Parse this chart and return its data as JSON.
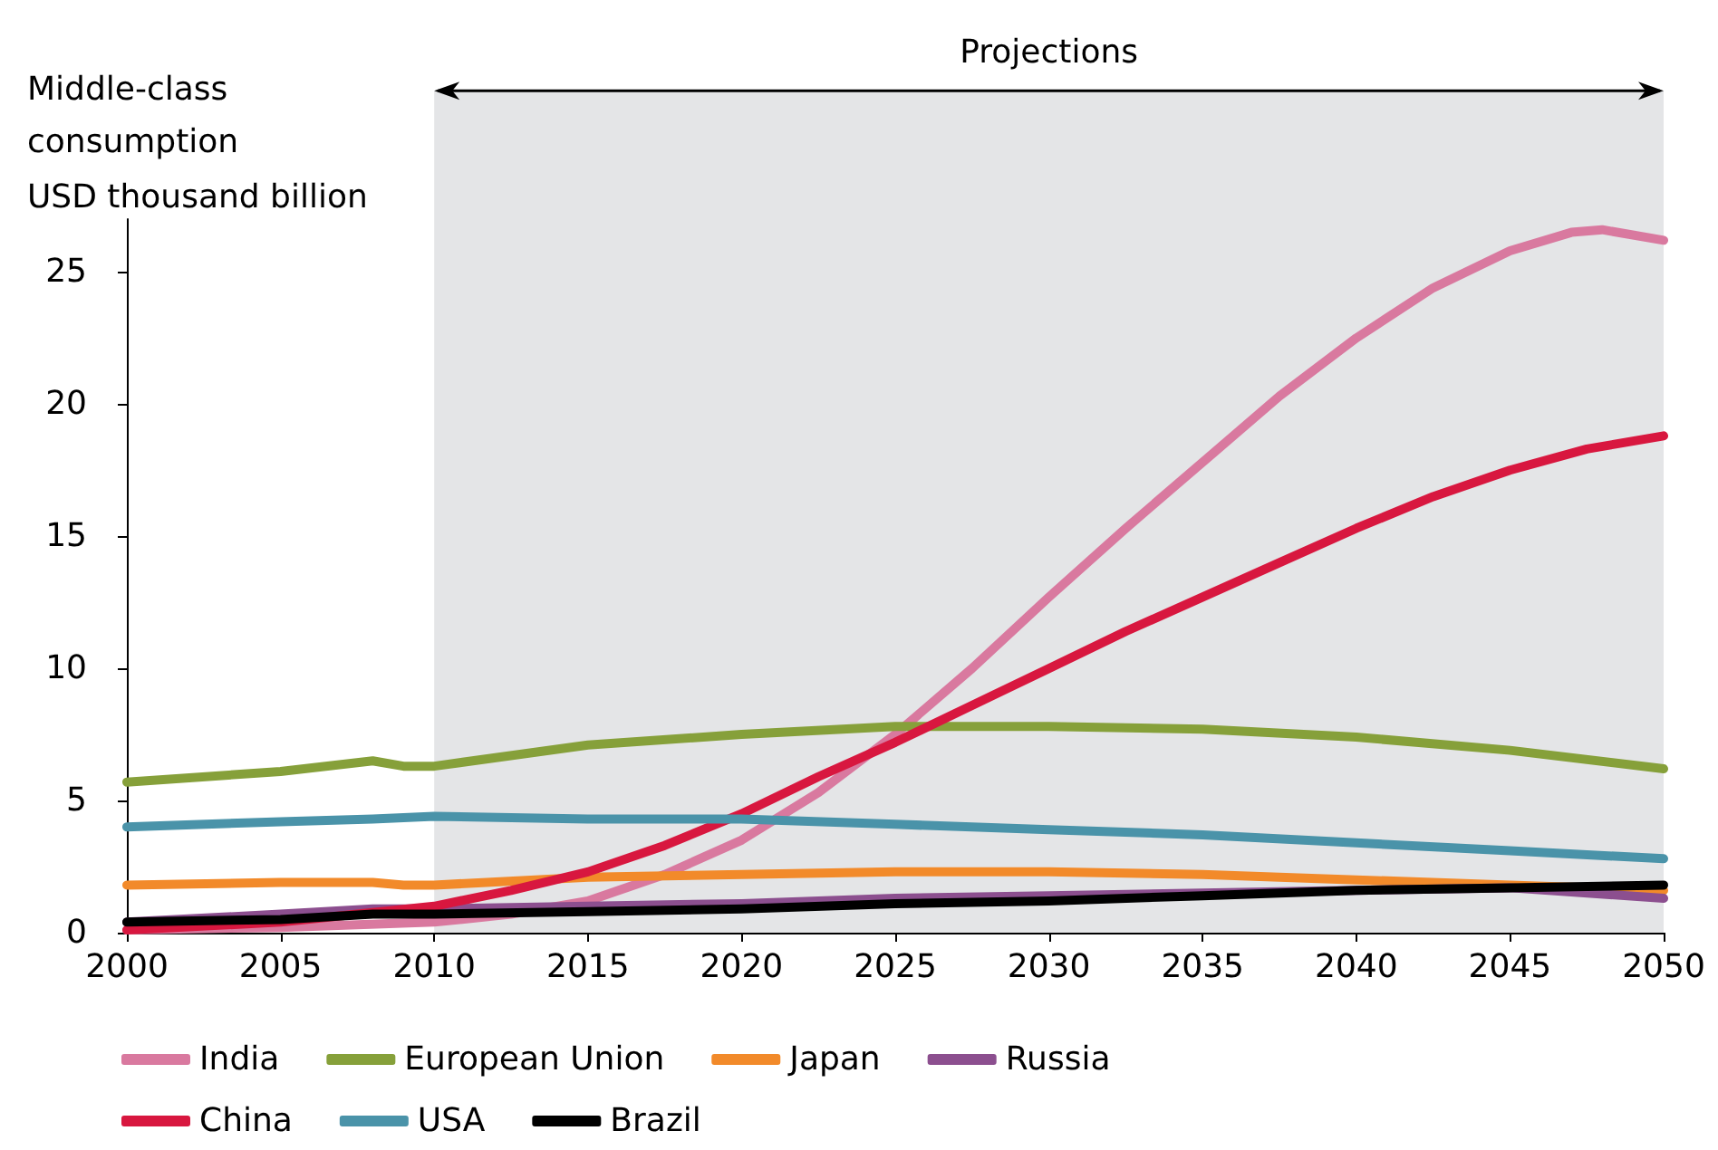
{
  "chart_data": {
    "type": "line",
    "title": "Middle-class consumption",
    "ylabel": "USD thousand billion",
    "xlim": [
      2000,
      2050
    ],
    "xticks": [
      2000,
      2005,
      2010,
      2015,
      2020,
      2025,
      2030,
      2035,
      2040,
      2045,
      2050
    ],
    "ylim": [
      0,
      27
    ],
    "yticks": [
      0,
      5,
      10,
      15,
      20,
      25
    ],
    "grid": false,
    "legend": "bottom",
    "marker": "none",
    "line_style": "solid",
    "bands": [
      {
        "axis": "x",
        "from": 2010,
        "to": 2050,
        "label": "Projections",
        "color": "#e4e5e7"
      }
    ],
    "series": [
      {
        "name": "India",
        "color": "#d9799f",
        "x": [
          2000,
          2005,
          2010,
          2012.5,
          2015,
          2017.5,
          2020,
          2022.5,
          2025,
          2027.5,
          2030,
          2032.5,
          2035,
          2037.5,
          2040,
          2042.5,
          2045,
          2047,
          2048,
          2050
        ],
        "values": [
          0.1,
          0.2,
          0.4,
          0.7,
          1.2,
          2.2,
          3.5,
          5.3,
          7.5,
          10.0,
          12.7,
          15.3,
          17.8,
          20.3,
          22.5,
          24.4,
          25.8,
          26.5,
          26.6,
          26.2
        ]
      },
      {
        "name": "European Union",
        "color": "#86a03a",
        "x": [
          2000,
          2005,
          2008,
          2009,
          2010,
          2015,
          2020,
          2025,
          2030,
          2035,
          2040,
          2045,
          2050
        ],
        "values": [
          5.7,
          6.1,
          6.5,
          6.3,
          6.3,
          7.1,
          7.5,
          7.8,
          7.8,
          7.7,
          7.4,
          6.9,
          6.2
        ]
      },
      {
        "name": "Japan",
        "color": "#f28a2a",
        "x": [
          2000,
          2005,
          2008,
          2009,
          2010,
          2015,
          2020,
          2025,
          2030,
          2035,
          2040,
          2045,
          2050
        ],
        "values": [
          1.8,
          1.9,
          1.9,
          1.8,
          1.8,
          2.1,
          2.2,
          2.3,
          2.3,
          2.2,
          2.0,
          1.8,
          1.6
        ]
      },
      {
        "name": "Russia",
        "color": "#8c4f8f",
        "x": [
          2000,
          2005,
          2008,
          2010,
          2015,
          2020,
          2025,
          2030,
          2035,
          2040,
          2045,
          2050
        ],
        "values": [
          0.4,
          0.7,
          0.9,
          0.9,
          1.0,
          1.1,
          1.3,
          1.4,
          1.5,
          1.6,
          1.7,
          1.3
        ]
      },
      {
        "name": "China",
        "color": "#d8173f",
        "x": [
          2000,
          2005,
          2010,
          2012.5,
          2015,
          2017.5,
          2020,
          2022.5,
          2025,
          2027.5,
          2030,
          2032.5,
          2035,
          2037.5,
          2040,
          2042.5,
          2045,
          2047.5,
          2050
        ],
        "values": [
          0.1,
          0.4,
          1.0,
          1.6,
          2.3,
          3.3,
          4.5,
          5.9,
          7.2,
          8.6,
          10.0,
          11.4,
          12.7,
          14.0,
          15.3,
          16.5,
          17.5,
          18.3,
          18.8
        ]
      },
      {
        "name": "USA",
        "color": "#4a93a9",
        "x": [
          2000,
          2005,
          2008,
          2010,
          2015,
          2020,
          2025,
          2030,
          2035,
          2040,
          2045,
          2050
        ],
        "values": [
          4.0,
          4.2,
          4.3,
          4.4,
          4.3,
          4.3,
          4.1,
          3.9,
          3.7,
          3.4,
          3.1,
          2.8
        ]
      },
      {
        "name": "Brazil",
        "color": "#000000",
        "x": [
          2000,
          2005,
          2008,
          2010,
          2015,
          2020,
          2025,
          2030,
          2035,
          2040,
          2045,
          2050
        ],
        "values": [
          0.4,
          0.5,
          0.7,
          0.7,
          0.8,
          0.9,
          1.1,
          1.2,
          1.4,
          1.6,
          1.7,
          1.8
        ]
      }
    ]
  }
}
